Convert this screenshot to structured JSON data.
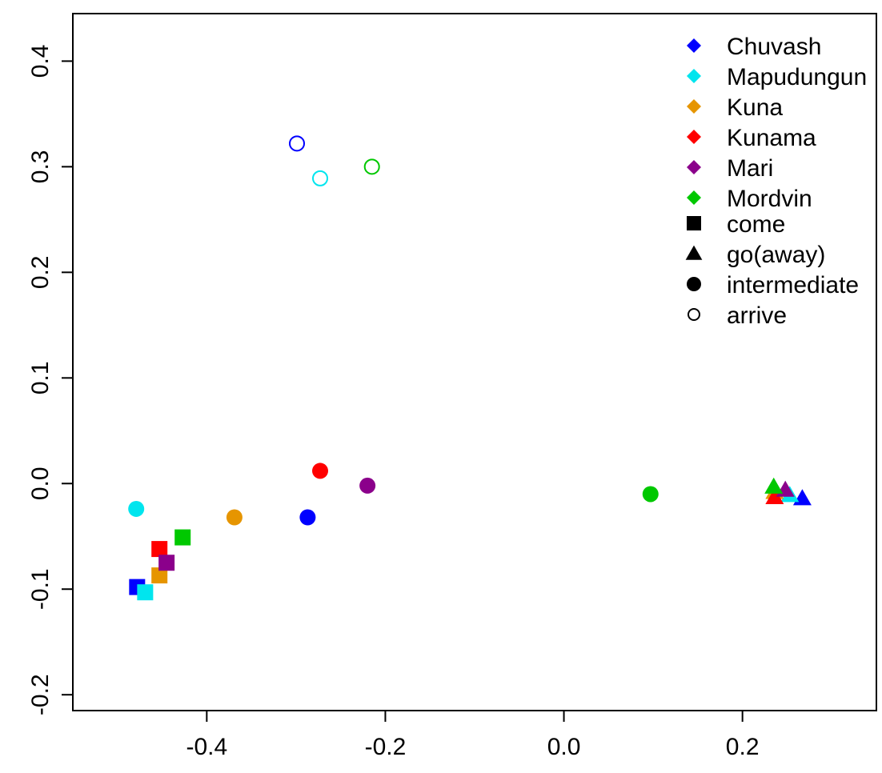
{
  "chart_data": {
    "type": "scatter",
    "xlim": [
      -0.55,
      0.35
    ],
    "ylim": [
      -0.215,
      0.445
    ],
    "x_ticks": [
      -0.4,
      -0.2,
      0.0,
      0.2
    ],
    "x_tick_labels": [
      "-0.4",
      "-0.2",
      "0.0",
      "0.2"
    ],
    "y_ticks": [
      -0.2,
      -0.1,
      0.0,
      0.1,
      0.2,
      0.3,
      0.4
    ],
    "y_tick_labels": [
      "-0.2",
      "-0.1",
      "0.0",
      "0.1",
      "0.2",
      "0.3",
      "0.4"
    ],
    "grid": false,
    "legend_position": "top-right",
    "series": [
      {
        "name": "Chuvash",
        "color": "#0000FF",
        "points": [
          {
            "shape": "square",
            "x": -0.478,
            "y": -0.098
          },
          {
            "shape": "circle",
            "x": -0.287,
            "y": -0.032
          },
          {
            "shape": "triangle",
            "x": 0.267,
            "y": -0.014
          },
          {
            "shape": "open-circle",
            "x": -0.299,
            "y": 0.322
          }
        ]
      },
      {
        "name": "Mapudungun",
        "color": "#00E5EE",
        "points": [
          {
            "shape": "square",
            "x": -0.469,
            "y": -0.103
          },
          {
            "shape": "circle",
            "x": -0.479,
            "y": -0.024
          },
          {
            "shape": "triangle",
            "x": 0.253,
            "y": -0.011
          },
          {
            "shape": "open-circle",
            "x": -0.273,
            "y": 0.289
          }
        ]
      },
      {
        "name": "Kuna",
        "color": "#E69500",
        "points": [
          {
            "shape": "square",
            "x": -0.453,
            "y": -0.087
          },
          {
            "shape": "circle",
            "x": -0.369,
            "y": -0.032
          },
          {
            "shape": "triangle",
            "x": 0.236,
            "y": -0.008
          }
        ]
      },
      {
        "name": "Kunama",
        "color": "#FF0000",
        "points": [
          {
            "shape": "square",
            "x": -0.453,
            "y": -0.062
          },
          {
            "shape": "circle",
            "x": -0.273,
            "y": 0.012
          },
          {
            "shape": "triangle",
            "x": 0.236,
            "y": -0.013
          }
        ]
      },
      {
        "name": "Mari",
        "color": "#8B008B",
        "points": [
          {
            "shape": "square",
            "x": -0.445,
            "y": -0.075
          },
          {
            "shape": "circle",
            "x": -0.22,
            "y": -0.002
          },
          {
            "shape": "triangle",
            "x": 0.248,
            "y": -0.006
          }
        ]
      },
      {
        "name": "Mordvin",
        "color": "#00C800",
        "points": [
          {
            "shape": "square",
            "x": -0.427,
            "y": -0.051
          },
          {
            "shape": "circle",
            "x": 0.097,
            "y": -0.01
          },
          {
            "shape": "triangle",
            "x": 0.235,
            "y": -0.003
          },
          {
            "shape": "open-circle",
            "x": -0.215,
            "y": 0.3
          }
        ]
      }
    ],
    "legend": {
      "languages": [
        {
          "label": "Chuvash",
          "color": "#0000FF"
        },
        {
          "label": "Mapudungun",
          "color": "#00E5EE"
        },
        {
          "label": "Kuna",
          "color": "#E69500"
        },
        {
          "label": "Kunama",
          "color": "#FF0000"
        },
        {
          "label": "Mari",
          "color": "#8B008B"
        },
        {
          "label": "Mordvin",
          "color": "#00C800"
        }
      ],
      "shapes": [
        {
          "label": "come",
          "shape": "square"
        },
        {
          "label": "go(away)",
          "shape": "triangle"
        },
        {
          "label": "intermediate",
          "shape": "circle"
        },
        {
          "label": "arrive",
          "shape": "open-circle"
        }
      ]
    }
  }
}
